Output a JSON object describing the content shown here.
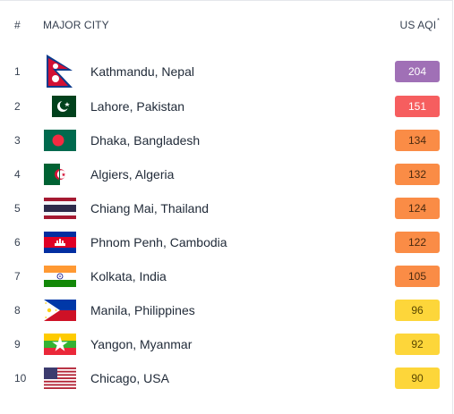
{
  "header": {
    "rank": "#",
    "city": "MAJOR CITY",
    "aqi": "US AQI",
    "aqi_mark": "*"
  },
  "rows": [
    {
      "rank": "1",
      "city": "Kathmandu, Nepal",
      "aqi": "204",
      "level": "purple",
      "flag": "nepal-flag-icon"
    },
    {
      "rank": "2",
      "city": "Lahore, Pakistan",
      "aqi": "151",
      "level": "red",
      "flag": "pakistan-flag-icon"
    },
    {
      "rank": "3",
      "city": "Dhaka, Bangladesh",
      "aqi": "134",
      "level": "orange",
      "flag": "bangladesh-flag-icon"
    },
    {
      "rank": "4",
      "city": "Algiers, Algeria",
      "aqi": "132",
      "level": "orange",
      "flag": "algeria-flag-icon"
    },
    {
      "rank": "5",
      "city": "Chiang Mai, Thailand",
      "aqi": "124",
      "level": "orange",
      "flag": "thailand-flag-icon"
    },
    {
      "rank": "6",
      "city": "Phnom Penh, Cambodia",
      "aqi": "122",
      "level": "orange",
      "flag": "cambodia-flag-icon"
    },
    {
      "rank": "7",
      "city": "Kolkata, India",
      "aqi": "105",
      "level": "orange",
      "flag": "india-flag-icon"
    },
    {
      "rank": "8",
      "city": "Manila, Philippines",
      "aqi": "96",
      "level": "yellow",
      "flag": "philippines-flag-icon"
    },
    {
      "rank": "9",
      "city": "Yangon, Myanmar",
      "aqi": "92",
      "level": "yellow",
      "flag": "myanmar-flag-icon"
    },
    {
      "rank": "10",
      "city": "Chicago, USA",
      "aqi": "90",
      "level": "yellow",
      "flag": "usa-flag-icon"
    }
  ],
  "colors": {
    "purple": "#a070b6",
    "red": "#f65e5f",
    "orange": "#fa8c46",
    "yellow": "#fdd63a"
  }
}
